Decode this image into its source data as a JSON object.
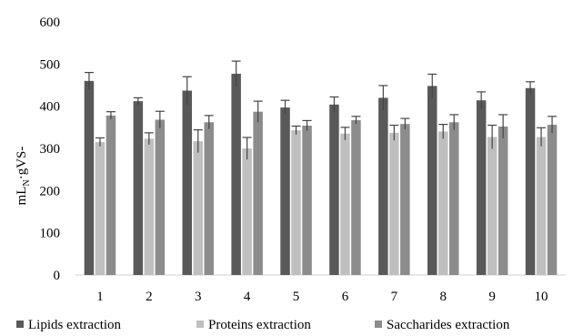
{
  "chart_data": {
    "type": "bar",
    "title": "",
    "xlabel": "",
    "ylabel": "mLN·gVS-",
    "ylabel_main": "mL",
    "ylabel_sub": "N",
    "ylabel_rest": "·gVS-",
    "ylim": [
      0,
      600
    ],
    "yticks": [
      0,
      100,
      200,
      300,
      400,
      500,
      600
    ],
    "grid": false,
    "legend_position": "bottom",
    "categories": [
      "1",
      "2",
      "3",
      "4",
      "5",
      "6",
      "7",
      "8",
      "9",
      "10"
    ],
    "series": [
      {
        "name": "Lipids extraction",
        "color": "#595959",
        "values": [
          460,
          412,
          437,
          477,
          397,
          404,
          420,
          448,
          414,
          443
        ],
        "errors": [
          20,
          8,
          33,
          30,
          17,
          18,
          29,
          28,
          20,
          15
        ]
      },
      {
        "name": "Proteins extraction",
        "color": "#bfbfbf",
        "values": [
          315,
          323,
          317,
          300,
          343,
          335,
          337,
          340,
          327,
          327
        ],
        "errors": [
          10,
          14,
          27,
          26,
          10,
          15,
          18,
          17,
          28,
          22
        ]
      },
      {
        "name": "Saccharides extraction",
        "color": "#8c8c8c",
        "values": [
          378,
          368,
          362,
          387,
          354,
          367,
          358,
          362,
          352,
          356
        ],
        "errors": [
          9,
          20,
          16,
          25,
          12,
          9,
          13,
          18,
          28,
          20
        ]
      }
    ]
  }
}
